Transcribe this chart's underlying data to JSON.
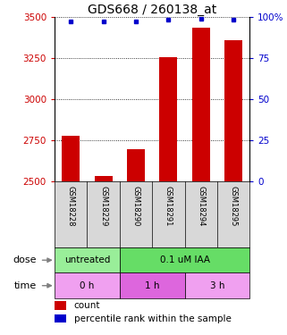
{
  "title": "GDS668 / 260138_at",
  "samples": [
    "GSM18228",
    "GSM18229",
    "GSM18290",
    "GSM18291",
    "GSM18294",
    "GSM18295"
  ],
  "counts": [
    2775,
    2535,
    2695,
    3255,
    3435,
    3360
  ],
  "percentiles": [
    97,
    97,
    97,
    98,
    99,
    98
  ],
  "ylim": [
    2500,
    3500
  ],
  "yticks_left": [
    2500,
    2750,
    3000,
    3250,
    3500
  ],
  "yticks_right": [
    0,
    25,
    50,
    75,
    100
  ],
  "y_right_labels": [
    "0",
    "25",
    "50",
    "75",
    "100%"
  ],
  "bar_color": "#cc0000",
  "dot_color": "#0000cc",
  "dose_groups": [
    {
      "label": "untreated",
      "start": 0,
      "end": 2,
      "color": "#99ee99"
    },
    {
      "label": "0.1 uM IAA",
      "start": 2,
      "end": 6,
      "color": "#66dd66"
    }
  ],
  "time_groups": [
    {
      "label": "0 h",
      "start": 0,
      "end": 2,
      "color": "#f0a0f0"
    },
    {
      "label": "1 h",
      "start": 2,
      "end": 4,
      "color": "#dd66dd"
    },
    {
      "label": "3 h",
      "start": 4,
      "end": 6,
      "color": "#f0a0f0"
    }
  ],
  "legend_count_color": "#cc0000",
  "legend_dot_color": "#0000cc",
  "left_axis_color": "#cc0000",
  "right_axis_color": "#0000cc",
  "grid_color": "#000000",
  "title_fontsize": 10,
  "bar_tick_fontsize": 7.5,
  "sample_fontsize": 6,
  "annotation_fontsize": 8,
  "legend_fontsize": 7.5,
  "label_row_fontsize": 7.5
}
